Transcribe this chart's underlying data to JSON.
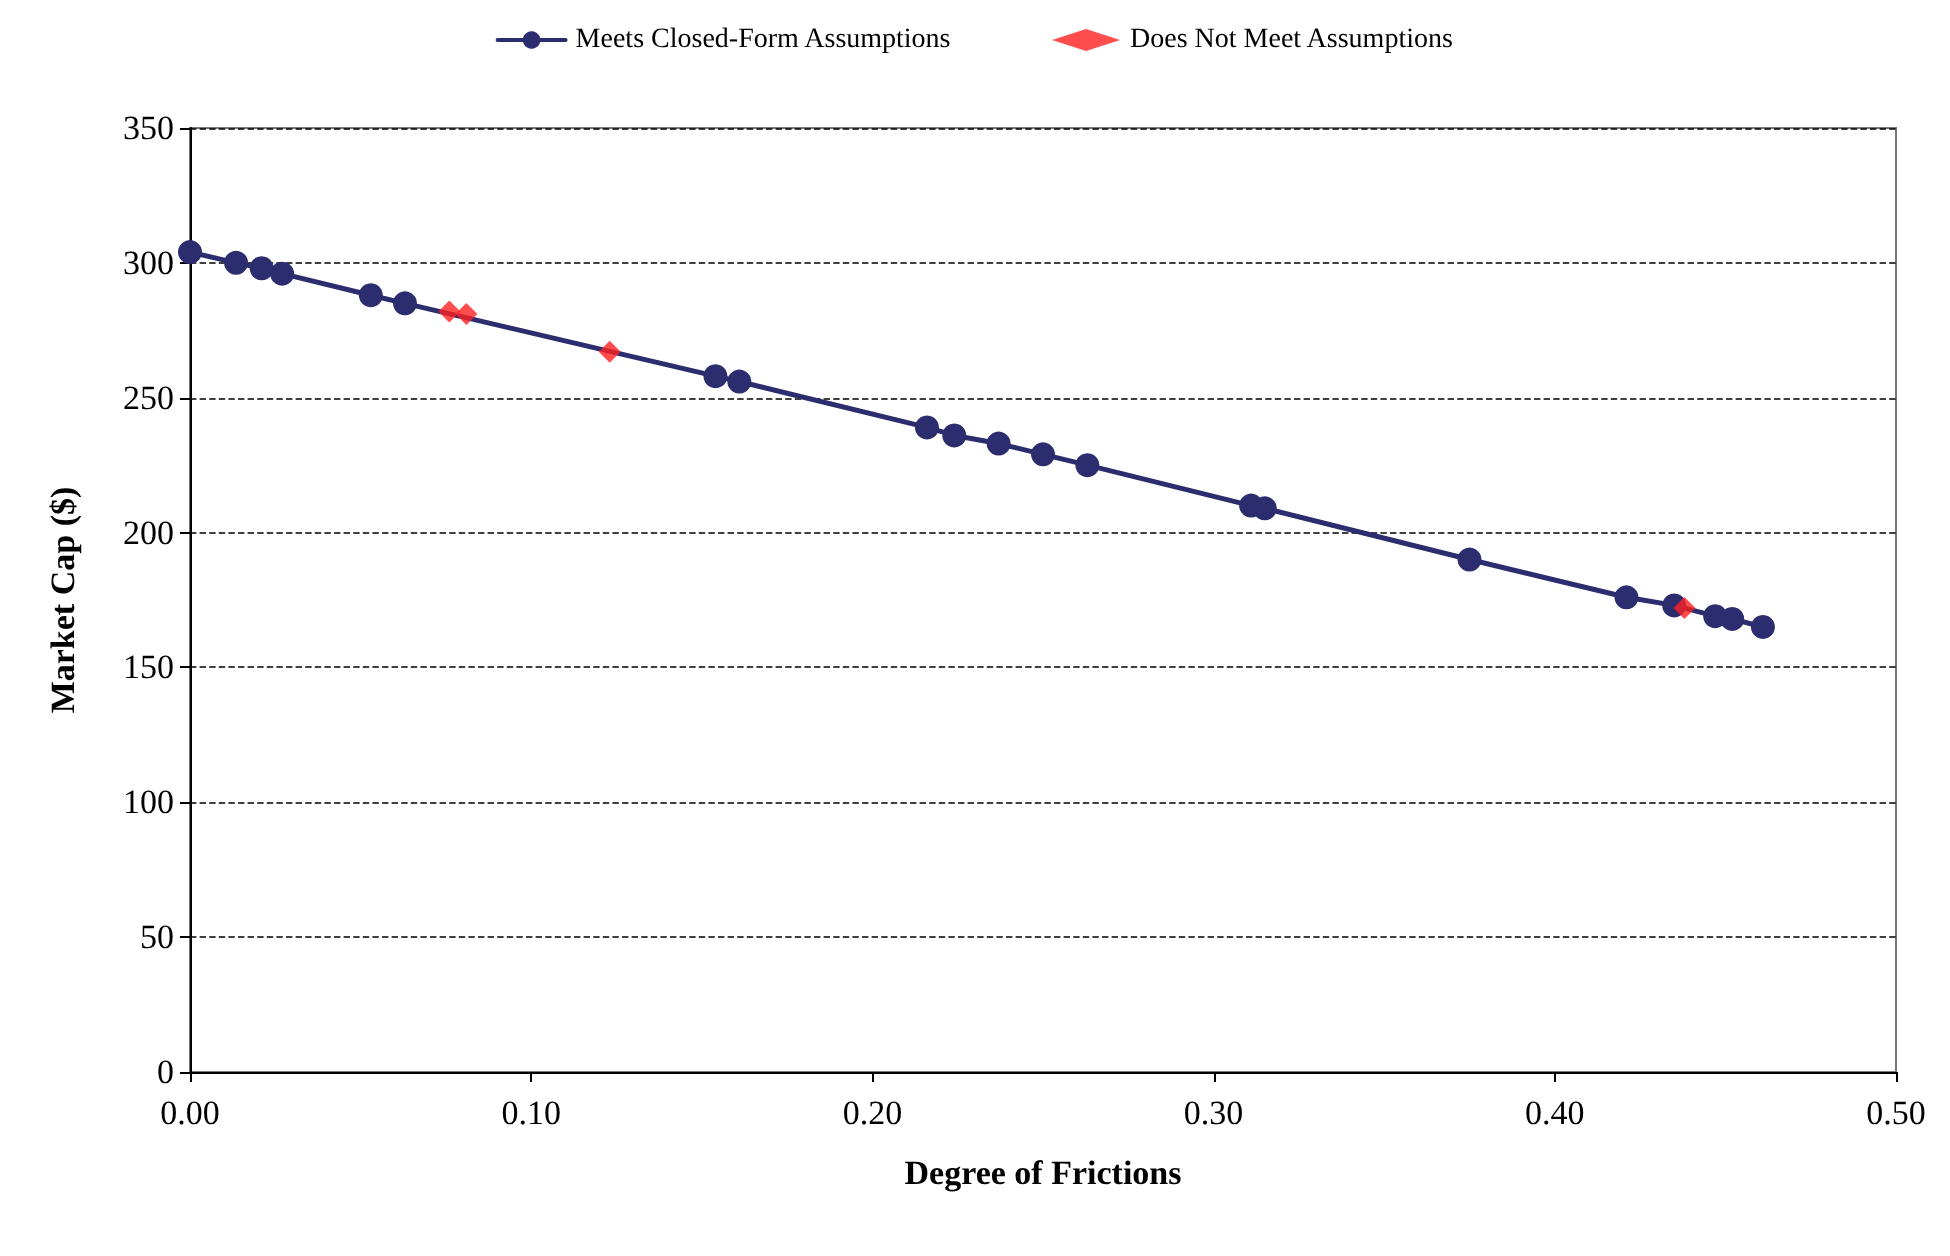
{
  "chart_data": {
    "type": "line",
    "xlabel": "Degree of Frictions",
    "ylabel": "Market Cap ($)",
    "legend": "top",
    "grid": "y",
    "xlim": [
      0,
      0.5
    ],
    "xticks": [
      {
        "value": 0,
        "label": "0.00"
      },
      {
        "value": 0.1,
        "label": "0.10"
      },
      {
        "value": 0.2,
        "label": "0.20"
      },
      {
        "value": 0.3,
        "label": "0.30"
      },
      {
        "value": 0.4,
        "label": "0.40"
      },
      {
        "value": 0.5,
        "label": "0.50"
      }
    ],
    "ylim": [
      0,
      350
    ],
    "yticks": [
      0,
      50,
      100,
      150,
      200,
      250,
      300,
      350
    ],
    "series": [
      {
        "name": "Meets Closed-Form Assumptions",
        "marker": "circle",
        "line_style": "solid",
        "color": "#2b2d6e",
        "x": [
          0,
          0.0135,
          0.021,
          0.027,
          0.053,
          0.063,
          0.154,
          0.161,
          0.216,
          0.224,
          0.237,
          0.25,
          0.263,
          0.311,
          0.315,
          0.375,
          0.421,
          0.435,
          0.447,
          0.452,
          0.461
        ],
        "values": [
          304,
          300,
          298,
          296,
          288,
          285,
          258,
          256,
          239,
          236,
          233,
          229,
          225,
          210,
          209,
          190,
          176,
          173,
          169,
          168,
          165
        ]
      },
      {
        "name": "Does Not Meet Assumptions",
        "type": "scatter",
        "marker": "diamond",
        "color": "#ff2020",
        "x": [
          0.076,
          0.081,
          0.123,
          0.438
        ],
        "values": [
          282,
          281,
          267,
          172
        ]
      }
    ]
  }
}
